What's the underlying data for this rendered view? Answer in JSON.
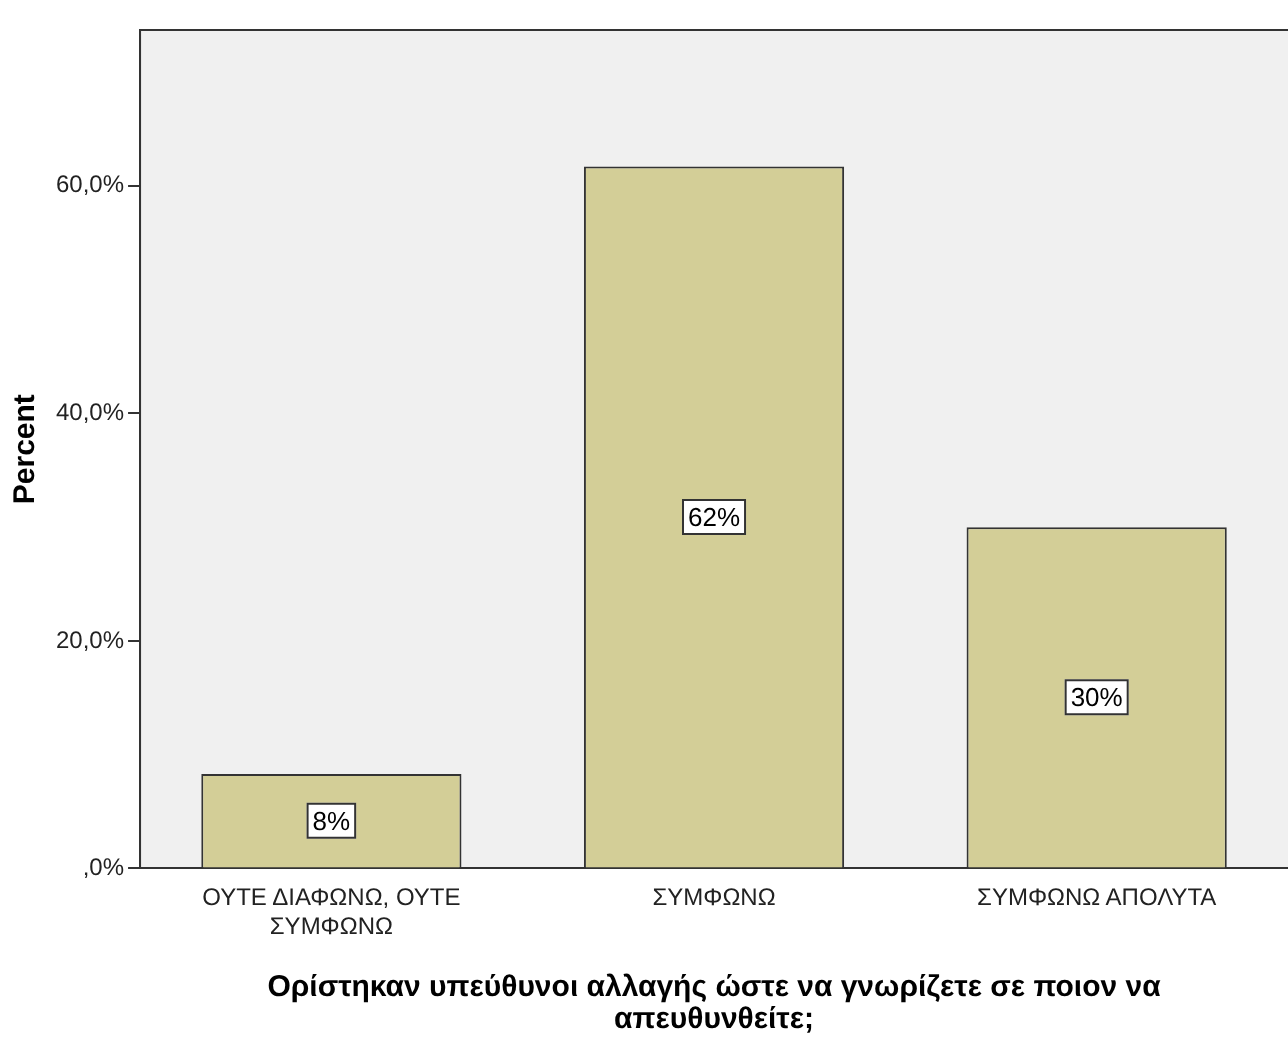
{
  "chart_data": {
    "type": "bar",
    "xlabel": "Ορίστηκαν υπεύθυνοι αλλαγής ώστε να γνωρίζετε σε ποιον να απευθυνθείτε;",
    "ylabel": "Percent",
    "categories": [
      "ΟΥΤΕ ΔΙΑΦΩΝΩ, ΟΥΤΕ ΣΥΜΦΩΝΩ",
      "ΣΥΜΦΩΝΩ",
      "ΣΥΜΦΩΝΩ ΑΠΟΛΥΤΑ"
    ],
    "values": [
      8.3,
      61.7,
      30.0
    ],
    "value_labels": [
      "8%",
      "62%",
      "30%"
    ],
    "color": "#d3ce97",
    "ylim": [
      0,
      73.7
    ],
    "yticks": [
      {
        "value": 0,
        "label": ",0%"
      },
      {
        "value": 20,
        "label": "20,0%"
      },
      {
        "value": 40,
        "label": "40,0%"
      },
      {
        "value": 60,
        "label": "60,0%"
      }
    ],
    "grid": false,
    "legend": false
  }
}
